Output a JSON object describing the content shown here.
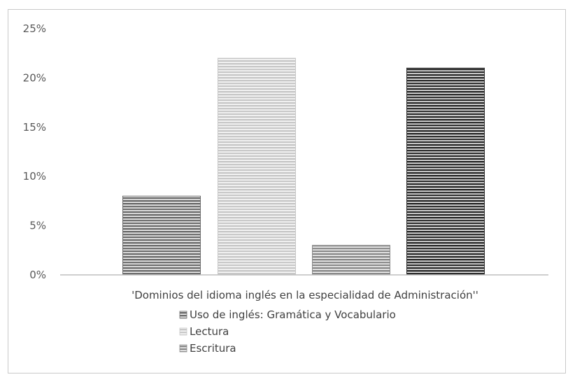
{
  "chart_data": {
    "type": "bar",
    "categories": [
      "'Dominios del idioma inglés en la especialidad de Administración''"
    ],
    "series": [
      {
        "name": "Uso de  inglés: Gramática y Vocabulario",
        "values": [
          0.08
        ],
        "color": "#6e6e6e"
      },
      {
        "name": "Lectura",
        "values": [
          0.22
        ],
        "color": "#c8c8c8"
      },
      {
        "name": "Escritura",
        "values": [
          0.03
        ],
        "color": "#8a8a8a"
      },
      {
        "name": "",
        "values": [
          0.21
        ],
        "color": "#2e2e2e"
      }
    ],
    "ylim": [
      0,
      0.25
    ],
    "yticks": [
      "0%",
      "5%",
      "10%",
      "15%",
      "20%",
      "25%"
    ],
    "ytick_values": [
      0,
      0.05,
      0.1,
      0.15,
      0.2,
      0.25
    ],
    "legend_position": "bottom",
    "grid": false,
    "pattern": "horizontal-stripes"
  }
}
